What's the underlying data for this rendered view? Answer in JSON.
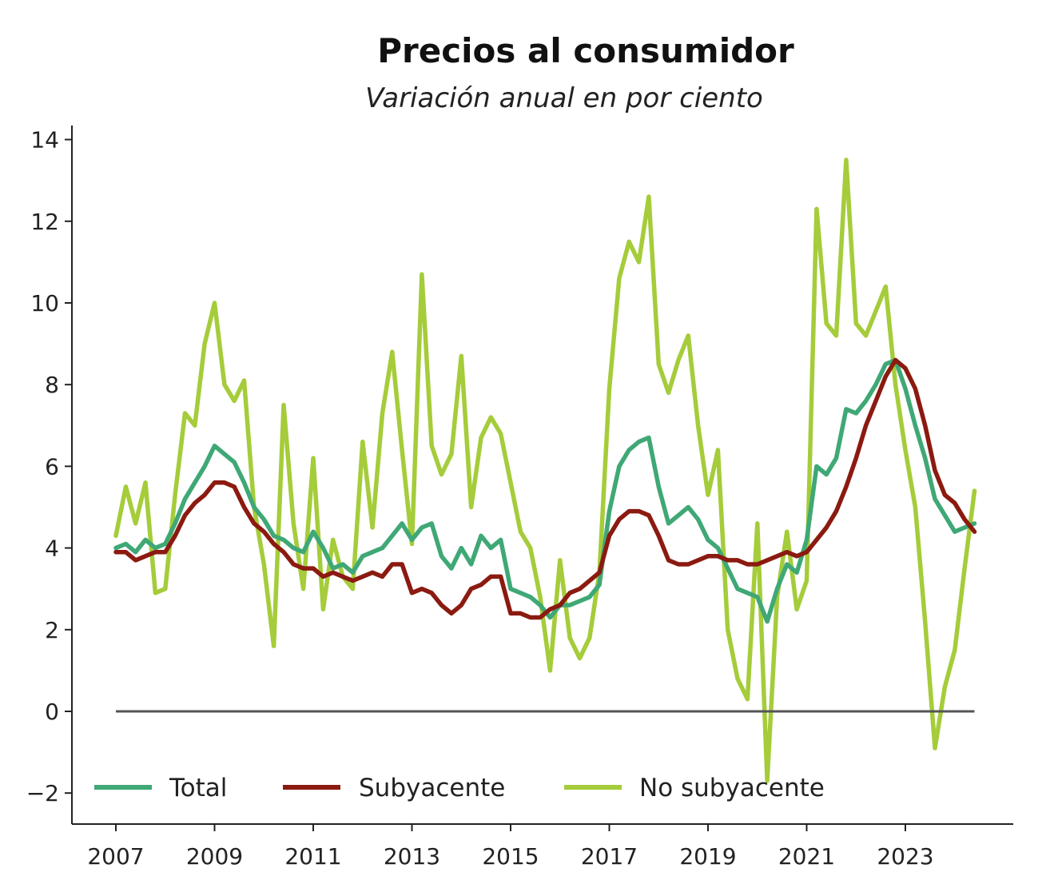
{
  "chart_data": {
    "type": "line",
    "title": "Precios al consumidor",
    "subtitle": "Variación anual en por ciento",
    "xlabel": "",
    "ylabel": "",
    "xlim": [
      2006.8,
      2025.0
    ],
    "ylim": [
      -2.7,
      14.3
    ],
    "yticks": [
      {
        "value": -2,
        "label": "−2"
      },
      {
        "value": 0,
        "label": "0"
      },
      {
        "value": 2,
        "label": "2"
      },
      {
        "value": 4,
        "label": "4"
      },
      {
        "value": 6,
        "label": "6"
      },
      {
        "value": 8,
        "label": "8"
      },
      {
        "value": 10,
        "label": "10"
      },
      {
        "value": 12,
        "label": "12"
      },
      {
        "value": 14,
        "label": "14"
      }
    ],
    "xticks": [
      {
        "value": 2007,
        "label": "2007"
      },
      {
        "value": 2009,
        "label": "2009"
      },
      {
        "value": 2011,
        "label": "2011"
      },
      {
        "value": 2013,
        "label": "2013"
      },
      {
        "value": 2015,
        "label": "2015"
      },
      {
        "value": 2017,
        "label": "2017"
      },
      {
        "value": 2019,
        "label": "2019"
      },
      {
        "value": 2021,
        "label": "2021"
      },
      {
        "value": 2023,
        "label": "2023"
      }
    ],
    "reference_line": {
      "y": 0,
      "x_from": 2007.0,
      "x_to": 2024.4
    },
    "grid": false,
    "legend_position": "bottom",
    "series": [
      {
        "name": "Total",
        "color": "#3fa876",
        "points": [
          [
            2007.0,
            4.0
          ],
          [
            2007.2,
            4.1
          ],
          [
            2007.4,
            3.9
          ],
          [
            2007.6,
            4.2
          ],
          [
            2007.8,
            4.0
          ],
          [
            2008.0,
            4.1
          ],
          [
            2008.2,
            4.6
          ],
          [
            2008.4,
            5.2
          ],
          [
            2008.6,
            5.6
          ],
          [
            2008.8,
            6.0
          ],
          [
            2009.0,
            6.5
          ],
          [
            2009.2,
            6.3
          ],
          [
            2009.4,
            6.1
          ],
          [
            2009.6,
            5.6
          ],
          [
            2009.8,
            5.0
          ],
          [
            2010.0,
            4.7
          ],
          [
            2010.2,
            4.3
          ],
          [
            2010.4,
            4.2
          ],
          [
            2010.6,
            4.0
          ],
          [
            2010.8,
            3.9
          ],
          [
            2011.0,
            4.4
          ],
          [
            2011.2,
            4.0
          ],
          [
            2011.4,
            3.5
          ],
          [
            2011.6,
            3.6
          ],
          [
            2011.8,
            3.4
          ],
          [
            2012.0,
            3.8
          ],
          [
            2012.2,
            3.9
          ],
          [
            2012.4,
            4.0
          ],
          [
            2012.6,
            4.3
          ],
          [
            2012.8,
            4.6
          ],
          [
            2013.0,
            4.2
          ],
          [
            2013.2,
            4.5
          ],
          [
            2013.4,
            4.6
          ],
          [
            2013.6,
            3.8
          ],
          [
            2013.8,
            3.5
          ],
          [
            2014.0,
            4.0
          ],
          [
            2014.2,
            3.6
          ],
          [
            2014.4,
            4.3
          ],
          [
            2014.6,
            4.0
          ],
          [
            2014.8,
            4.2
          ],
          [
            2015.0,
            3.0
          ],
          [
            2015.2,
            2.9
          ],
          [
            2015.4,
            2.8
          ],
          [
            2015.6,
            2.6
          ],
          [
            2015.8,
            2.3
          ],
          [
            2016.0,
            2.6
          ],
          [
            2016.2,
            2.6
          ],
          [
            2016.4,
            2.7
          ],
          [
            2016.6,
            2.8
          ],
          [
            2016.8,
            3.1
          ],
          [
            2017.0,
            4.9
          ],
          [
            2017.2,
            6.0
          ],
          [
            2017.4,
            6.4
          ],
          [
            2017.6,
            6.6
          ],
          [
            2017.8,
            6.7
          ],
          [
            2018.0,
            5.5
          ],
          [
            2018.2,
            4.6
          ],
          [
            2018.4,
            4.8
          ],
          [
            2018.6,
            5.0
          ],
          [
            2018.8,
            4.7
          ],
          [
            2019.0,
            4.2
          ],
          [
            2019.2,
            4.0
          ],
          [
            2019.4,
            3.5
          ],
          [
            2019.6,
            3.0
          ],
          [
            2019.8,
            2.9
          ],
          [
            2020.0,
            2.8
          ],
          [
            2020.2,
            2.2
          ],
          [
            2020.4,
            3.0
          ],
          [
            2020.6,
            3.6
          ],
          [
            2020.8,
            3.4
          ],
          [
            2021.0,
            4.2
          ],
          [
            2021.2,
            6.0
          ],
          [
            2021.4,
            5.8
          ],
          [
            2021.6,
            6.2
          ],
          [
            2021.8,
            7.4
          ],
          [
            2022.0,
            7.3
          ],
          [
            2022.2,
            7.6
          ],
          [
            2022.4,
            8.0
          ],
          [
            2022.6,
            8.5
          ],
          [
            2022.8,
            8.6
          ],
          [
            2023.0,
            7.9
          ],
          [
            2023.2,
            7.0
          ],
          [
            2023.4,
            6.2
          ],
          [
            2023.6,
            5.2
          ],
          [
            2023.8,
            4.8
          ],
          [
            2024.0,
            4.4
          ],
          [
            2024.2,
            4.5
          ],
          [
            2024.4,
            4.6
          ]
        ]
      },
      {
        "name": "Subyacente",
        "color": "#8b1a10",
        "points": [
          [
            2007.0,
            3.9
          ],
          [
            2007.2,
            3.9
          ],
          [
            2007.4,
            3.7
          ],
          [
            2007.6,
            3.8
          ],
          [
            2007.8,
            3.9
          ],
          [
            2008.0,
            3.9
          ],
          [
            2008.2,
            4.3
          ],
          [
            2008.4,
            4.8
          ],
          [
            2008.6,
            5.1
          ],
          [
            2008.8,
            5.3
          ],
          [
            2009.0,
            5.6
          ],
          [
            2009.2,
            5.6
          ],
          [
            2009.4,
            5.5
          ],
          [
            2009.6,
            5.0
          ],
          [
            2009.8,
            4.6
          ],
          [
            2010.0,
            4.4
          ],
          [
            2010.2,
            4.1
          ],
          [
            2010.4,
            3.9
          ],
          [
            2010.6,
            3.6
          ],
          [
            2010.8,
            3.5
          ],
          [
            2011.0,
            3.5
          ],
          [
            2011.2,
            3.3
          ],
          [
            2011.4,
            3.4
          ],
          [
            2011.6,
            3.3
          ],
          [
            2011.8,
            3.2
          ],
          [
            2012.0,
            3.3
          ],
          [
            2012.2,
            3.4
          ],
          [
            2012.4,
            3.3
          ],
          [
            2012.6,
            3.6
          ],
          [
            2012.8,
            3.6
          ],
          [
            2013.0,
            2.9
          ],
          [
            2013.2,
            3.0
          ],
          [
            2013.4,
            2.9
          ],
          [
            2013.6,
            2.6
          ],
          [
            2013.8,
            2.4
          ],
          [
            2014.0,
            2.6
          ],
          [
            2014.2,
            3.0
          ],
          [
            2014.4,
            3.1
          ],
          [
            2014.6,
            3.3
          ],
          [
            2014.8,
            3.3
          ],
          [
            2015.0,
            2.4
          ],
          [
            2015.2,
            2.4
          ],
          [
            2015.4,
            2.3
          ],
          [
            2015.6,
            2.3
          ],
          [
            2015.8,
            2.5
          ],
          [
            2016.0,
            2.6
          ],
          [
            2016.2,
            2.9
          ],
          [
            2016.4,
            3.0
          ],
          [
            2016.6,
            3.2
          ],
          [
            2016.8,
            3.4
          ],
          [
            2017.0,
            4.3
          ],
          [
            2017.2,
            4.7
          ],
          [
            2017.4,
            4.9
          ],
          [
            2017.6,
            4.9
          ],
          [
            2017.8,
            4.8
          ],
          [
            2018.0,
            4.3
          ],
          [
            2018.2,
            3.7
          ],
          [
            2018.4,
            3.6
          ],
          [
            2018.6,
            3.6
          ],
          [
            2018.8,
            3.7
          ],
          [
            2019.0,
            3.8
          ],
          [
            2019.2,
            3.8
          ],
          [
            2019.4,
            3.7
          ],
          [
            2019.6,
            3.7
          ],
          [
            2019.8,
            3.6
          ],
          [
            2020.0,
            3.6
          ],
          [
            2020.2,
            3.7
          ],
          [
            2020.4,
            3.8
          ],
          [
            2020.6,
            3.9
          ],
          [
            2020.8,
            3.8
          ],
          [
            2021.0,
            3.9
          ],
          [
            2021.2,
            4.2
          ],
          [
            2021.4,
            4.5
          ],
          [
            2021.6,
            4.9
          ],
          [
            2021.8,
            5.5
          ],
          [
            2022.0,
            6.2
          ],
          [
            2022.2,
            7.0
          ],
          [
            2022.4,
            7.6
          ],
          [
            2022.6,
            8.2
          ],
          [
            2022.8,
            8.6
          ],
          [
            2023.0,
            8.4
          ],
          [
            2023.2,
            7.9
          ],
          [
            2023.4,
            7.0
          ],
          [
            2023.6,
            5.9
          ],
          [
            2023.8,
            5.3
          ],
          [
            2024.0,
            5.1
          ],
          [
            2024.2,
            4.7
          ],
          [
            2024.4,
            4.4
          ]
        ]
      },
      {
        "name": "No subyacente",
        "color": "#a5cc3a",
        "points": [
          [
            2007.0,
            4.3
          ],
          [
            2007.2,
            5.5
          ],
          [
            2007.4,
            4.6
          ],
          [
            2007.6,
            5.6
          ],
          [
            2007.8,
            2.9
          ],
          [
            2008.0,
            3.0
          ],
          [
            2008.2,
            5.3
          ],
          [
            2008.4,
            7.3
          ],
          [
            2008.6,
            7.0
          ],
          [
            2008.8,
            9.0
          ],
          [
            2009.0,
            10.0
          ],
          [
            2009.2,
            8.0
          ],
          [
            2009.4,
            7.6
          ],
          [
            2009.6,
            8.1
          ],
          [
            2009.8,
            5.0
          ],
          [
            2010.0,
            3.6
          ],
          [
            2010.2,
            1.6
          ],
          [
            2010.4,
            7.5
          ],
          [
            2010.6,
            4.6
          ],
          [
            2010.8,
            3.0
          ],
          [
            2011.0,
            6.2
          ],
          [
            2011.2,
            2.5
          ],
          [
            2011.4,
            4.2
          ],
          [
            2011.6,
            3.3
          ],
          [
            2011.8,
            3.0
          ],
          [
            2012.0,
            6.6
          ],
          [
            2012.2,
            4.5
          ],
          [
            2012.4,
            7.3
          ],
          [
            2012.6,
            8.8
          ],
          [
            2012.8,
            6.4
          ],
          [
            2013.0,
            4.1
          ],
          [
            2013.2,
            10.7
          ],
          [
            2013.4,
            6.5
          ],
          [
            2013.6,
            5.8
          ],
          [
            2013.8,
            6.3
          ],
          [
            2014.0,
            8.7
          ],
          [
            2014.2,
            5.0
          ],
          [
            2014.4,
            6.7
          ],
          [
            2014.6,
            7.2
          ],
          [
            2014.8,
            6.8
          ],
          [
            2015.0,
            5.6
          ],
          [
            2015.2,
            4.4
          ],
          [
            2015.4,
            4.0
          ],
          [
            2015.6,
            2.8
          ],
          [
            2015.8,
            1.0
          ],
          [
            2016.0,
            3.7
          ],
          [
            2016.2,
            1.8
          ],
          [
            2016.4,
            1.3
          ],
          [
            2016.6,
            1.8
          ],
          [
            2016.8,
            3.4
          ],
          [
            2017.0,
            7.9
          ],
          [
            2017.2,
            10.6
          ],
          [
            2017.4,
            11.5
          ],
          [
            2017.6,
            11.0
          ],
          [
            2017.8,
            12.6
          ],
          [
            2018.0,
            8.5
          ],
          [
            2018.2,
            7.8
          ],
          [
            2018.4,
            8.6
          ],
          [
            2018.6,
            9.2
          ],
          [
            2018.8,
            7.0
          ],
          [
            2019.0,
            5.3
          ],
          [
            2019.2,
            6.4
          ],
          [
            2019.4,
            2.0
          ],
          [
            2019.6,
            0.8
          ],
          [
            2019.8,
            0.3
          ],
          [
            2020.0,
            4.6
          ],
          [
            2020.2,
            -1.7
          ],
          [
            2020.4,
            2.8
          ],
          [
            2020.6,
            4.4
          ],
          [
            2020.8,
            2.5
          ],
          [
            2021.0,
            3.2
          ],
          [
            2021.2,
            12.3
          ],
          [
            2021.4,
            9.5
          ],
          [
            2021.6,
            9.2
          ],
          [
            2021.8,
            13.5
          ],
          [
            2022.0,
            9.5
          ],
          [
            2022.2,
            9.2
          ],
          [
            2022.4,
            9.8
          ],
          [
            2022.6,
            10.4
          ],
          [
            2022.8,
            8.0
          ],
          [
            2023.0,
            6.4
          ],
          [
            2023.2,
            5.0
          ],
          [
            2023.4,
            2.2
          ],
          [
            2023.6,
            -0.9
          ],
          [
            2023.8,
            0.6
          ],
          [
            2024.0,
            1.5
          ],
          [
            2024.2,
            3.5
          ],
          [
            2024.4,
            5.4
          ]
        ]
      }
    ]
  }
}
